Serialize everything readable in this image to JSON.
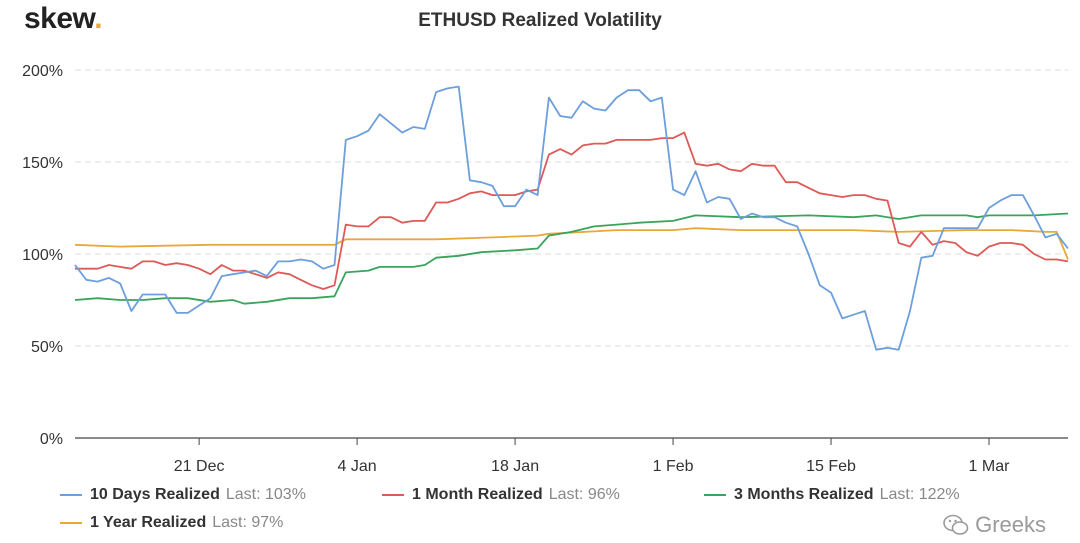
{
  "header": {
    "logo_text": "skew",
    "logo_dot": ".",
    "title": "ETHUSD Realized Volatility"
  },
  "watermark": {
    "text": "Greeks",
    "icon": "wechat-icon"
  },
  "colors": {
    "ten_day": "#6c9fdb",
    "one_month": "#dd5a57",
    "three_month": "#3aa35c",
    "one_year": "#e8a83a",
    "grid": "#dddddd",
    "axis": "#444444"
  },
  "legend": [
    {
      "name": "10 Days Realized",
      "note": "Last: 103%",
      "color": "#6c9fdb"
    },
    {
      "name": "1 Month Realized",
      "note": "Last: 96%",
      "color": "#dd5a57"
    },
    {
      "name": "3 Months Realized",
      "note": "Last: 122%",
      "color": "#3aa35c"
    },
    {
      "name": "1 Year Realized",
      "note": "Last: 97%",
      "color": "#e8a83a"
    }
  ],
  "chart_data": {
    "type": "line",
    "title": "ETHUSD Realized Volatility",
    "xlabel": "",
    "ylabel": "",
    "x_range": [
      "2020-12-10",
      "2021-03-08"
    ],
    "ylim": [
      0,
      200
    ],
    "y_ticks": [
      0,
      50,
      100,
      150,
      200
    ],
    "y_tick_labels": [
      "0%",
      "50%",
      "100%",
      "150%",
      "200%"
    ],
    "x_ticks": [
      "2020-12-21",
      "2021-01-04",
      "2021-01-18",
      "2021-02-01",
      "2021-02-15",
      "2021-03-01"
    ],
    "x_tick_labels": [
      "21 Dec",
      "4 Jan",
      "18 Jan",
      "1 Feb",
      "15 Feb",
      "1 Mar"
    ],
    "grid": "horizontal dashed",
    "legend_position": "bottom",
    "series": [
      {
        "name": "10 Days Realized",
        "color": "#6c9fdb",
        "points": [
          [
            "2020-12-10",
            94
          ],
          [
            "2020-12-11",
            86
          ],
          [
            "2020-12-12",
            85
          ],
          [
            "2020-12-13",
            87
          ],
          [
            "2020-12-14",
            84
          ],
          [
            "2020-12-15",
            69
          ],
          [
            "2020-12-16",
            78
          ],
          [
            "2020-12-17",
            78
          ],
          [
            "2020-12-18",
            78
          ],
          [
            "2020-12-19",
            68
          ],
          [
            "2020-12-20",
            68
          ],
          [
            "2020-12-21",
            72
          ],
          [
            "2020-12-22",
            76
          ],
          [
            "2020-12-23",
            88
          ],
          [
            "2020-12-24",
            89
          ],
          [
            "2020-12-25",
            90
          ],
          [
            "2020-12-26",
            91
          ],
          [
            "2020-12-27",
            88
          ],
          [
            "2020-12-28",
            96
          ],
          [
            "2020-12-29",
            96
          ],
          [
            "2020-12-30",
            97
          ],
          [
            "2020-12-31",
            96
          ],
          [
            "2021-01-01",
            92
          ],
          [
            "2021-01-02",
            94
          ],
          [
            "2021-01-03",
            162
          ],
          [
            "2021-01-04",
            164
          ],
          [
            "2021-01-05",
            167
          ],
          [
            "2021-01-06",
            176
          ],
          [
            "2021-01-07",
            171
          ],
          [
            "2021-01-08",
            166
          ],
          [
            "2021-01-09",
            169
          ],
          [
            "2021-01-10",
            168
          ],
          [
            "2021-01-11",
            188
          ],
          [
            "2021-01-12",
            190
          ],
          [
            "2021-01-13",
            191
          ],
          [
            "2021-01-14",
            140
          ],
          [
            "2021-01-15",
            139
          ],
          [
            "2021-01-16",
            137
          ],
          [
            "2021-01-17",
            126
          ],
          [
            "2021-01-18",
            126
          ],
          [
            "2021-01-19",
            135
          ],
          [
            "2021-01-20",
            132
          ],
          [
            "2021-01-21",
            185
          ],
          [
            "2021-01-22",
            175
          ],
          [
            "2021-01-23",
            174
          ],
          [
            "2021-01-24",
            183
          ],
          [
            "2021-01-25",
            179
          ],
          [
            "2021-01-26",
            178
          ],
          [
            "2021-01-27",
            185
          ],
          [
            "2021-01-28",
            189
          ],
          [
            "2021-01-29",
            189
          ],
          [
            "2021-01-30",
            183
          ],
          [
            "2021-01-31",
            185
          ],
          [
            "2021-02-01",
            135
          ],
          [
            "2021-02-02",
            132
          ],
          [
            "2021-02-03",
            145
          ],
          [
            "2021-02-04",
            128
          ],
          [
            "2021-02-05",
            131
          ],
          [
            "2021-02-06",
            130
          ],
          [
            "2021-02-07",
            119
          ],
          [
            "2021-02-08",
            122
          ],
          [
            "2021-02-09",
            120
          ],
          [
            "2021-02-10",
            120
          ],
          [
            "2021-02-11",
            117
          ],
          [
            "2021-02-12",
            115
          ],
          [
            "2021-02-13",
            100
          ],
          [
            "2021-02-14",
            83
          ],
          [
            "2021-02-15",
            79
          ],
          [
            "2021-02-16",
            65
          ],
          [
            "2021-02-17",
            67
          ],
          [
            "2021-02-18",
            69
          ],
          [
            "2021-02-19",
            48
          ],
          [
            "2021-02-20",
            49
          ],
          [
            "2021-02-21",
            48
          ],
          [
            "2021-02-22",
            69
          ],
          [
            "2021-02-23",
            98
          ],
          [
            "2021-02-24",
            99
          ],
          [
            "2021-02-25",
            114
          ],
          [
            "2021-02-26",
            114
          ],
          [
            "2021-02-27",
            114
          ],
          [
            "2021-02-28",
            114
          ],
          [
            "2021-03-01",
            125
          ],
          [
            "2021-03-02",
            129
          ],
          [
            "2021-03-03",
            132
          ],
          [
            "2021-03-04",
            132
          ],
          [
            "2021-03-05",
            121
          ],
          [
            "2021-03-06",
            109
          ],
          [
            "2021-03-07",
            111
          ],
          [
            "2021-03-08",
            103
          ]
        ]
      },
      {
        "name": "1 Month Realized",
        "color": "#dd5a57",
        "points": [
          [
            "2020-12-10",
            92
          ],
          [
            "2020-12-11",
            92
          ],
          [
            "2020-12-12",
            92
          ],
          [
            "2020-12-13",
            94
          ],
          [
            "2020-12-14",
            93
          ],
          [
            "2020-12-15",
            92
          ],
          [
            "2020-12-16",
            96
          ],
          [
            "2020-12-17",
            96
          ],
          [
            "2020-12-18",
            94
          ],
          [
            "2020-12-19",
            95
          ],
          [
            "2020-12-20",
            94
          ],
          [
            "2020-12-21",
            92
          ],
          [
            "2020-12-22",
            89
          ],
          [
            "2020-12-23",
            94
          ],
          [
            "2020-12-24",
            91
          ],
          [
            "2020-12-25",
            91
          ],
          [
            "2020-12-26",
            89
          ],
          [
            "2020-12-27",
            87
          ],
          [
            "2020-12-28",
            90
          ],
          [
            "2020-12-29",
            89
          ],
          [
            "2020-12-30",
            86
          ],
          [
            "2020-12-31",
            83
          ],
          [
            "2021-01-01",
            81
          ],
          [
            "2021-01-02",
            83
          ],
          [
            "2021-01-03",
            116
          ],
          [
            "2021-01-04",
            115
          ],
          [
            "2021-01-05",
            115
          ],
          [
            "2021-01-06",
            120
          ],
          [
            "2021-01-07",
            120
          ],
          [
            "2021-01-08",
            117
          ],
          [
            "2021-01-09",
            118
          ],
          [
            "2021-01-10",
            118
          ],
          [
            "2021-01-11",
            128
          ],
          [
            "2021-01-12",
            128
          ],
          [
            "2021-01-13",
            130
          ],
          [
            "2021-01-14",
            133
          ],
          [
            "2021-01-15",
            134
          ],
          [
            "2021-01-16",
            132
          ],
          [
            "2021-01-17",
            132
          ],
          [
            "2021-01-18",
            132
          ],
          [
            "2021-01-19",
            134
          ],
          [
            "2021-01-20",
            135
          ],
          [
            "2021-01-21",
            154
          ],
          [
            "2021-01-22",
            157
          ],
          [
            "2021-01-23",
            154
          ],
          [
            "2021-01-24",
            159
          ],
          [
            "2021-01-25",
            160
          ],
          [
            "2021-01-26",
            160
          ],
          [
            "2021-01-27",
            162
          ],
          [
            "2021-01-28",
            162
          ],
          [
            "2021-01-29",
            162
          ],
          [
            "2021-01-30",
            162
          ],
          [
            "2021-01-31",
            163
          ],
          [
            "2021-02-01",
            163
          ],
          [
            "2021-02-02",
            166
          ],
          [
            "2021-02-03",
            149
          ],
          [
            "2021-02-04",
            148
          ],
          [
            "2021-02-05",
            149
          ],
          [
            "2021-02-06",
            146
          ],
          [
            "2021-02-07",
            145
          ],
          [
            "2021-02-08",
            149
          ],
          [
            "2021-02-09",
            148
          ],
          [
            "2021-02-10",
            148
          ],
          [
            "2021-02-11",
            139
          ],
          [
            "2021-02-12",
            139
          ],
          [
            "2021-02-13",
            136
          ],
          [
            "2021-02-14",
            133
          ],
          [
            "2021-02-15",
            132
          ],
          [
            "2021-02-16",
            131
          ],
          [
            "2021-02-17",
            132
          ],
          [
            "2021-02-18",
            132
          ],
          [
            "2021-02-19",
            130
          ],
          [
            "2021-02-20",
            129
          ],
          [
            "2021-02-21",
            106
          ],
          [
            "2021-02-22",
            104
          ],
          [
            "2021-02-23",
            112
          ],
          [
            "2021-02-24",
            105
          ],
          [
            "2021-02-25",
            107
          ],
          [
            "2021-02-26",
            106
          ],
          [
            "2021-02-27",
            101
          ],
          [
            "2021-02-28",
            99
          ],
          [
            "2021-03-01",
            104
          ],
          [
            "2021-03-02",
            106
          ],
          [
            "2021-03-03",
            106
          ],
          [
            "2021-03-04",
            105
          ],
          [
            "2021-03-05",
            100
          ],
          [
            "2021-03-06",
            97
          ],
          [
            "2021-03-07",
            97
          ],
          [
            "2021-03-08",
            96
          ]
        ]
      },
      {
        "name": "3 Months Realized",
        "color": "#3aa35c",
        "points": [
          [
            "2020-12-10",
            75
          ],
          [
            "2020-12-12",
            76
          ],
          [
            "2020-12-14",
            75
          ],
          [
            "2020-12-16",
            75
          ],
          [
            "2020-12-18",
            76
          ],
          [
            "2020-12-20",
            76
          ],
          [
            "2020-12-22",
            74
          ],
          [
            "2020-12-24",
            75
          ],
          [
            "2020-12-25",
            73
          ],
          [
            "2020-12-27",
            74
          ],
          [
            "2020-12-29",
            76
          ],
          [
            "2020-12-31",
            76
          ],
          [
            "2021-01-02",
            77
          ],
          [
            "2021-01-03",
            90
          ],
          [
            "2021-01-05",
            91
          ],
          [
            "2021-01-06",
            93
          ],
          [
            "2021-01-09",
            93
          ],
          [
            "2021-01-10",
            94
          ],
          [
            "2021-01-11",
            98
          ],
          [
            "2021-01-13",
            99
          ],
          [
            "2021-01-15",
            101
          ],
          [
            "2021-01-18",
            102
          ],
          [
            "2021-01-20",
            103
          ],
          [
            "2021-01-21",
            110
          ],
          [
            "2021-01-23",
            112
          ],
          [
            "2021-01-25",
            115
          ],
          [
            "2021-01-27",
            116
          ],
          [
            "2021-01-29",
            117
          ],
          [
            "2021-02-01",
            118
          ],
          [
            "2021-02-03",
            121
          ],
          [
            "2021-02-07",
            120
          ],
          [
            "2021-02-13",
            121
          ],
          [
            "2021-02-17",
            120
          ],
          [
            "2021-02-19",
            121
          ],
          [
            "2021-02-21",
            119
          ],
          [
            "2021-02-23",
            121
          ],
          [
            "2021-02-27",
            121
          ],
          [
            "2021-02-28",
            120
          ],
          [
            "2021-03-01",
            121
          ],
          [
            "2021-03-03",
            121
          ],
          [
            "2021-03-05",
            121
          ],
          [
            "2021-03-08",
            122
          ]
        ]
      },
      {
        "name": "1 Year Realized",
        "color": "#e8a83a",
        "points": [
          [
            "2020-12-10",
            105
          ],
          [
            "2020-12-14",
            104
          ],
          [
            "2020-12-22",
            105
          ],
          [
            "2021-01-02",
            105
          ],
          [
            "2021-01-03",
            108
          ],
          [
            "2021-01-06",
            108
          ],
          [
            "2021-01-09",
            108
          ],
          [
            "2021-01-11",
            108
          ],
          [
            "2021-01-16",
            109
          ],
          [
            "2021-01-20",
            110
          ],
          [
            "2021-01-21",
            111
          ],
          [
            "2021-01-27",
            113
          ],
          [
            "2021-02-01",
            113
          ],
          [
            "2021-02-03",
            114
          ],
          [
            "2021-02-07",
            113
          ],
          [
            "2021-02-17",
            113
          ],
          [
            "2021-02-21",
            112
          ],
          [
            "2021-02-27",
            113
          ],
          [
            "2021-03-03",
            113
          ],
          [
            "2021-03-06",
            112
          ],
          [
            "2021-03-07",
            112
          ],
          [
            "2021-03-08",
            97
          ]
        ]
      }
    ]
  }
}
